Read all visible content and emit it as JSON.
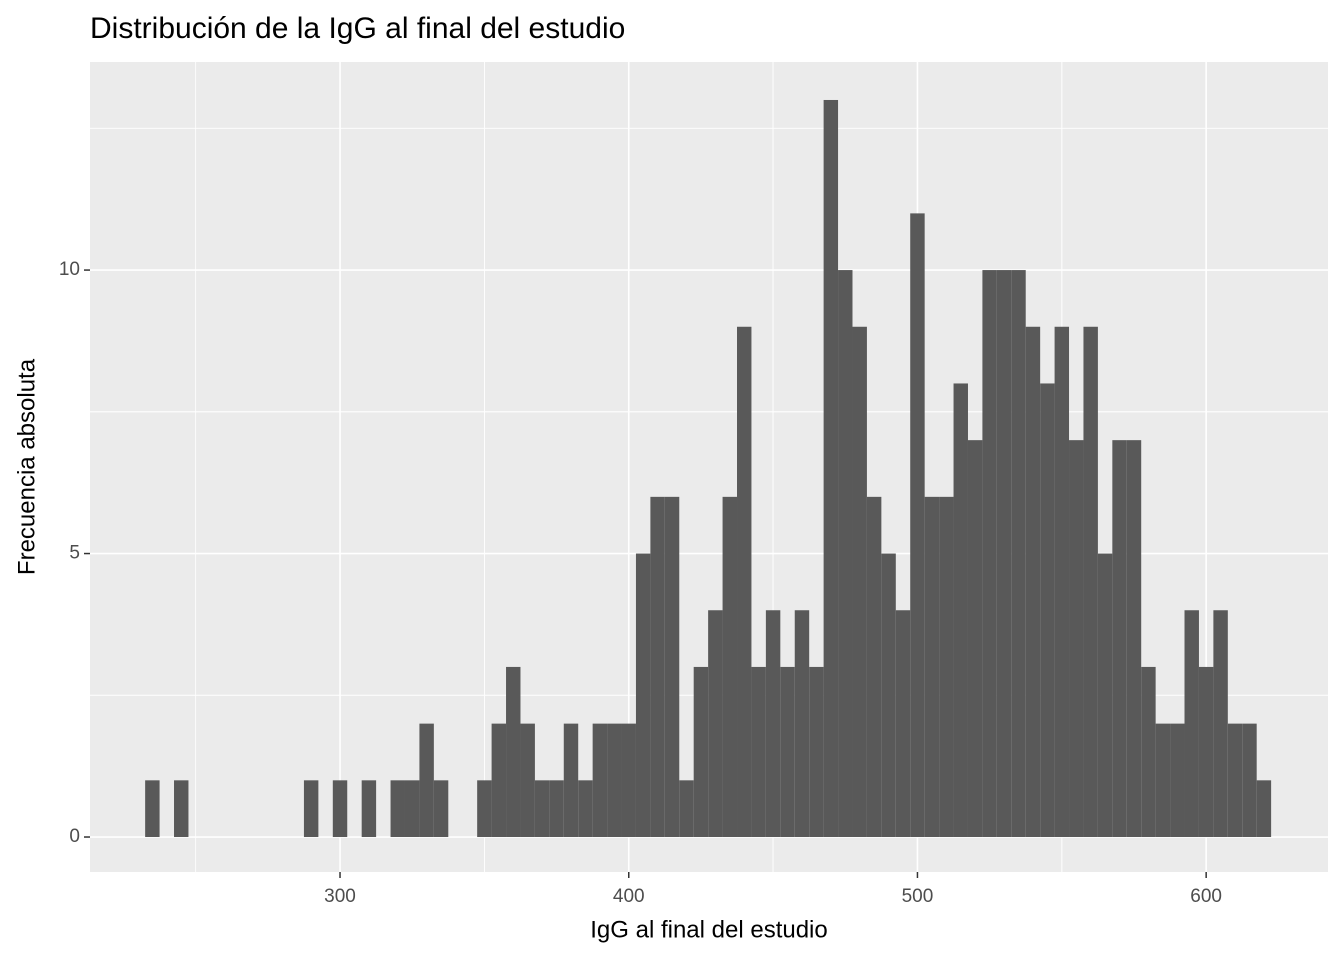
{
  "chart_data": {
    "type": "histogram",
    "title": "Distribución de la IgG al final del estudio",
    "x_label": "IgG al final del estudio",
    "y_label": "Frecuencia absoluta",
    "bins": [
      232.5,
      237.5,
      242.5,
      247.5,
      252.5,
      257.5,
      262.5,
      267.5,
      272.5,
      277.5,
      282.5,
      287.5,
      292.5,
      297.5,
      302.5,
      307.5,
      312.5,
      317.5,
      322.5,
      327.5,
      332.5,
      337.5,
      342.5,
      347.5,
      352.5,
      357.5,
      362.5,
      367.5,
      372.5,
      377.5,
      382.5,
      387.5,
      392.5,
      397.5,
      402.5,
      407.5,
      412.5,
      417.5,
      422.5,
      427.5,
      432.5,
      437.5,
      442.5,
      447.5,
      452.5,
      457.5,
      462.5,
      467.5,
      472.5,
      477.5,
      482.5,
      487.5,
      492.5,
      497.5,
      502.5,
      507.5,
      512.5,
      517.5,
      522.5,
      527.5,
      532.5,
      537.5,
      542.5,
      547.5,
      552.5,
      557.5,
      562.5,
      567.5,
      572.5,
      577.5,
      582.5,
      587.5,
      592.5,
      597.5,
      602.5,
      607.5,
      612.5,
      617.5,
      622.5
    ],
    "values": [
      1,
      0,
      1,
      0,
      0,
      0,
      0,
      0,
      0,
      0,
      0,
      1,
      0,
      1,
      0,
      1,
      0,
      1,
      1,
      2,
      1,
      0,
      0,
      1,
      2,
      3,
      2,
      1,
      1,
      2,
      1,
      2,
      2,
      2,
      5,
      6,
      6,
      1,
      3,
      4,
      6,
      9,
      3,
      4,
      3,
      4,
      3,
      13,
      10,
      9,
      6,
      5,
      4,
      11,
      6,
      6,
      8,
      7,
      10,
      10,
      10,
      9,
      8,
      9,
      7,
      9,
      5,
      7,
      7,
      3,
      2,
      2,
      4,
      3,
      4,
      2,
      2,
      1
    ],
    "color": "#595959",
    "xlim": [
      213.4,
      642.2
    ],
    "xticks": [
      300,
      400,
      500,
      600
    ],
    "ylim": [
      -0.617,
      13.67
    ],
    "yticks": [
      0,
      5,
      10
    ],
    "grid": true
  }
}
